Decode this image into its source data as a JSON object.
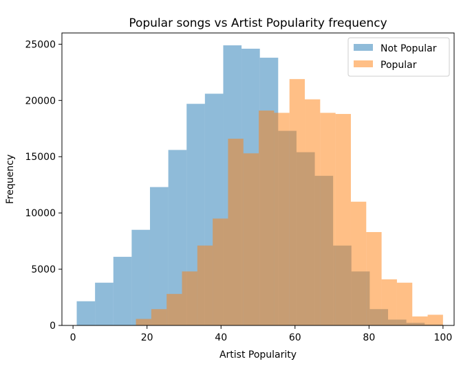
{
  "chart_data": {
    "type": "bar",
    "subtype": "overlapping-histogram",
    "title": "Popular songs vs Artist Popularity frequency",
    "xlabel": "Artist Popularity",
    "ylabel": "Frequency",
    "xlim": [
      -3,
      103
    ],
    "ylim": [
      0,
      26000
    ],
    "xticks": [
      0,
      20,
      40,
      60,
      80,
      100
    ],
    "yticks": [
      0,
      5000,
      10000,
      15000,
      20000,
      25000
    ],
    "grid": false,
    "legend": {
      "placement": "top-right"
    },
    "series": [
      {
        "name": "Not Popular",
        "color": "#1f77b4",
        "alpha": 0.5,
        "bin_edges": [
          1,
          5.95,
          10.9,
          15.85,
          20.8,
          25.75,
          30.7,
          35.65,
          40.6,
          45.55,
          50.5,
          55.45,
          60.4,
          65.35,
          70.3,
          75.25,
          80.2,
          85.15,
          90.1,
          95.05,
          100
        ],
        "values": [
          2150,
          3800,
          6100,
          8500,
          12300,
          15600,
          19700,
          20600,
          24900,
          24600,
          23800,
          17300,
          15400,
          13300,
          7100,
          4800,
          1450,
          520,
          230,
          80
        ]
      },
      {
        "name": "Popular",
        "color": "#ff7f0e",
        "alpha": 0.5,
        "bin_edges": [
          17,
          21.15,
          25.3,
          29.45,
          33.6,
          37.75,
          41.9,
          46.05,
          50.2,
          54.35,
          58.5,
          62.65,
          66.8,
          70.95,
          75.1,
          79.25,
          83.4,
          87.55,
          91.7,
          95.85,
          100
        ],
        "values": [
          580,
          1450,
          2800,
          4800,
          7100,
          9500,
          16600,
          15300,
          19100,
          18900,
          21900,
          20100,
          18900,
          18800,
          11000,
          8300,
          4100,
          3800,
          800,
          950
        ]
      }
    ]
  }
}
